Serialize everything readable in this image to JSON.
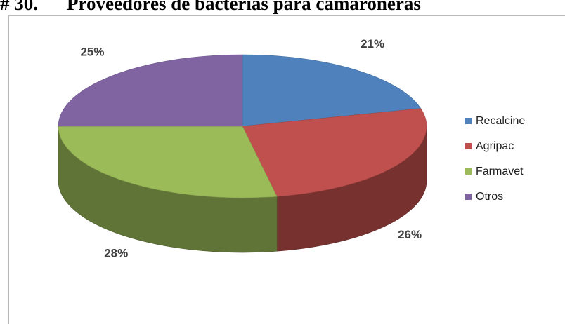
{
  "heading": {
    "number": "# 30.",
    "title": "Proveedores de bacterias para camaroneras"
  },
  "chart_data": {
    "type": "pie",
    "style": "3d",
    "categories": [
      "Recalcine",
      "Agripac",
      "Farmavet",
      "Otros"
    ],
    "values": [
      21,
      26,
      28,
      25
    ],
    "data_labels": [
      "21%",
      "26%",
      "28%",
      "25%"
    ],
    "colors": [
      "#4f81bd",
      "#c0504d",
      "#9bbb59",
      "#8064a2"
    ],
    "legend_position": "right"
  }
}
